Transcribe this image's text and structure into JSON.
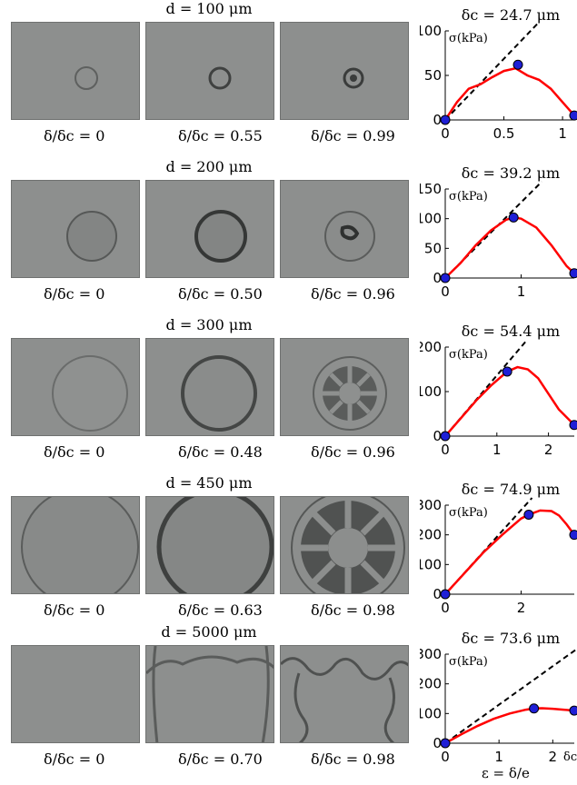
{
  "rows": [
    {
      "title": "d =  100 μm",
      "ratios": [
        "δ/δc =  0",
        "δ/δc =  0.55",
        "δ/δc =  0.99"
      ],
      "chart_title": "δc  =  24.7 μm"
    },
    {
      "title": "d =  200 μm",
      "ratios": [
        "δ/δc =  0",
        "δ/δc =  0.50",
        "δ/δc =  0.96"
      ],
      "chart_title": "δc  =  39.2 μm"
    },
    {
      "title": "d =  300 μm",
      "ratios": [
        "δ/δc =  0",
        "δ/δc =  0.48",
        "δ/δc =  0.96"
      ],
      "chart_title": "δc  =  54.4 μm"
    },
    {
      "title": "d =  450 μm",
      "ratios": [
        "δ/δc =  0",
        "δ/δc =  0.63",
        "δ/δc =  0.98"
      ],
      "chart_title": "δc  =  74.9 μm"
    },
    {
      "title": "d =  5000 μm",
      "ratios": [
        "δ/δc =  0",
        "δ/δc =  0.70",
        "δ/δc =  0.98"
      ],
      "chart_title": "δc  =  73.6 μm"
    }
  ],
  "x_axis_label": "ε = δ/e",
  "corner_label": "δc/e",
  "chart_data": [
    {
      "type": "line",
      "title": "δc  =  24.7 μm",
      "ylabel": "σ(kPa)",
      "xlim": [
        0,
        1.1
      ],
      "ylim": [
        0,
        100
      ],
      "xticks": [
        0,
        0.5,
        1
      ],
      "yticks": [
        0,
        50,
        100
      ],
      "series": [
        {
          "values_x": [
            0,
            0.1,
            0.2,
            0.3,
            0.4,
            0.5,
            0.6,
            0.7,
            0.8,
            0.9,
            1.0,
            1.1
          ],
          "values_y": [
            0,
            20,
            35,
            40,
            48,
            55,
            58,
            50,
            45,
            35,
            20,
            5
          ]
        }
      ],
      "points": [
        [
          0,
          0
        ],
        [
          0.62,
          62
        ],
        [
          1.1,
          5
        ]
      ],
      "tangent_slope": 135
    },
    {
      "type": "line",
      "title": "δc  =  39.2 μm",
      "ylabel": "σ(kPa)",
      "xlim": [
        0,
        1.7
      ],
      "ylim": [
        0,
        150
      ],
      "xticks": [
        0,
        1
      ],
      "yticks": [
        0,
        50,
        100,
        150
      ],
      "series": [
        {
          "values_x": [
            0,
            0.2,
            0.4,
            0.6,
            0.8,
            0.9,
            1.0,
            1.2,
            1.4,
            1.6,
            1.7
          ],
          "values_y": [
            0,
            25,
            55,
            80,
            98,
            102,
            100,
            85,
            55,
            20,
            8
          ]
        }
      ],
      "points": [
        [
          0,
          0
        ],
        [
          0.9,
          102
        ],
        [
          1.7,
          8
        ]
      ],
      "tangent_slope": 125
    },
    {
      "type": "line",
      "title": "δc  =  54.4 μm",
      "ylabel": "σ(kPa)",
      "xlim": [
        0,
        2.5
      ],
      "ylim": [
        0,
        200
      ],
      "xticks": [
        0,
        1,
        2
      ],
      "yticks": [
        0,
        100,
        200
      ],
      "series": [
        {
          "values_x": [
            0,
            0.3,
            0.6,
            0.9,
            1.2,
            1.4,
            1.6,
            1.8,
            2.0,
            2.2,
            2.5
          ],
          "values_y": [
            0,
            40,
            80,
            115,
            145,
            155,
            150,
            130,
            95,
            60,
            25
          ]
        }
      ],
      "points": [
        [
          0,
          0
        ],
        [
          1.2,
          145
        ],
        [
          2.5,
          25
        ]
      ],
      "tangent_slope": 135
    },
    {
      "type": "line",
      "title": "δc  =  74.9 μm",
      "ylabel": "σ(kPa)",
      "xlim": [
        0,
        3.4
      ],
      "ylim": [
        0,
        300
      ],
      "xticks": [
        0,
        2
      ],
      "yticks": [
        0,
        100,
        200,
        300
      ],
      "series": [
        {
          "values_x": [
            0,
            0.5,
            1.0,
            1.5,
            2.0,
            2.2,
            2.5,
            2.8,
            3.0,
            3.2,
            3.4
          ],
          "values_y": [
            0,
            70,
            140,
            200,
            255,
            268,
            282,
            280,
            265,
            235,
            200
          ]
        }
      ],
      "points": [
        [
          0,
          0
        ],
        [
          2.2,
          268
        ],
        [
          3.4,
          200
        ]
      ],
      "tangent_slope": 140
    },
    {
      "type": "line",
      "title": "δc  =  73.6 μm",
      "ylabel": "σ(kPa)",
      "xlim": [
        0,
        2.4
      ],
      "ylim": [
        0,
        300
      ],
      "xticks": [
        0,
        1,
        2
      ],
      "yticks": [
        0,
        100,
        200,
        300
      ],
      "series": [
        {
          "values_x": [
            0,
            0.3,
            0.6,
            0.9,
            1.2,
            1.5,
            1.65,
            1.8,
            2.0,
            2.2,
            2.4
          ],
          "values_y": [
            0,
            30,
            58,
            82,
            100,
            113,
            117,
            118,
            116,
            113,
            110
          ]
        }
      ],
      "points": [
        [
          0,
          0
        ],
        [
          1.65,
          117
        ],
        [
          2.4,
          110
        ]
      ],
      "tangent_slope": 125
    }
  ]
}
